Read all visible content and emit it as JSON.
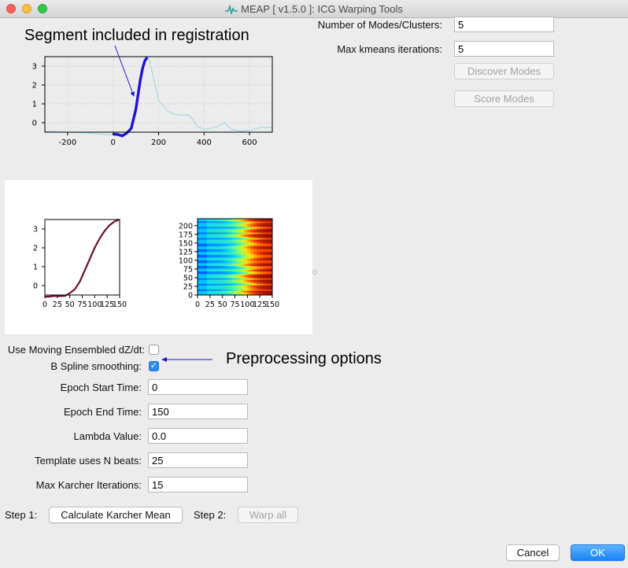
{
  "window": {
    "title": "MEAP [ v1.5.0 ]: ICG Warping Tools"
  },
  "annotations": {
    "segment": "Segment included in registration",
    "preprocessing": "Preprocessing options"
  },
  "chart_data": [
    {
      "type": "line",
      "title": "",
      "xlim": [
        -300,
        700
      ],
      "ylim": [
        -0.5,
        3.5
      ],
      "x_ticks": [
        "-200",
        "0",
        "200",
        "400",
        "600"
      ],
      "y_ticks": [
        "3",
        "2",
        "1",
        "0"
      ],
      "grid": true,
      "series": [
        {
          "style": "thin light blue",
          "x": [
            -300,
            -200,
            -100,
            -50,
            0,
            20,
            50,
            80,
            100,
            120,
            140,
            150,
            160,
            175,
            200,
            240,
            270,
            300,
            330,
            350,
            370,
            400,
            430,
            460,
            490,
            520,
            560,
            600,
            650,
            700
          ],
          "y": [
            -0.45,
            -0.5,
            -0.55,
            -0.6,
            -0.65,
            -0.6,
            -0.62,
            -0.3,
            0.8,
            2.2,
            3.3,
            3.5,
            3.3,
            2.5,
            1.2,
            0.6,
            0.45,
            0.4,
            0.4,
            0.2,
            -0.2,
            -0.35,
            -0.3,
            -0.2,
            0.0,
            -0.35,
            -0.45,
            -0.4,
            -0.25,
            -0.25
          ]
        },
        {
          "style": "thick dark blue (segment)",
          "x": [
            0,
            20,
            40,
            60,
            80,
            100,
            110,
            120,
            130,
            140,
            150
          ],
          "y": [
            -0.6,
            -0.62,
            -0.7,
            -0.55,
            -0.3,
            0.7,
            1.5,
            2.3,
            2.9,
            3.3,
            3.45
          ]
        }
      ]
    },
    {
      "type": "line",
      "title": "",
      "xlim": [
        0,
        150
      ],
      "ylim": [
        -0.5,
        3.5
      ],
      "x_ticks": [
        "0",
        "25",
        "50",
        "75",
        "100",
        "125",
        "150"
      ],
      "y_ticks": [
        "3",
        "2",
        "1",
        "0"
      ],
      "series": [
        {
          "style": "dark red karcher mean",
          "x": [
            0,
            10,
            20,
            30,
            40,
            50,
            60,
            70,
            80,
            90,
            100,
            110,
            120,
            130,
            140,
            150
          ],
          "y": [
            -0.6,
            -0.58,
            -0.55,
            -0.56,
            -0.55,
            -0.4,
            -0.2,
            0.2,
            0.8,
            1.4,
            2.0,
            2.5,
            2.9,
            3.2,
            3.4,
            3.5
          ]
        }
      ]
    },
    {
      "type": "heatmap",
      "title": "",
      "xlim": [
        0,
        150
      ],
      "ylim": [
        0,
        220
      ],
      "x_ticks": [
        "0",
        "25",
        "50",
        "75",
        "100",
        "125",
        "150"
      ],
      "y_ticks": [
        "200",
        "175",
        "150",
        "125",
        "100",
        "75",
        "50",
        "25",
        "0"
      ],
      "colormap": "jet",
      "description_colors": [
        "#00007f",
        "#0050ff",
        "#00d4ff",
        "#7dff7a",
        "#ffe600",
        "#ff4800",
        "#7f0000"
      ]
    }
  ],
  "right_panel": {
    "num_modes_label": "Number of Modes/Clusters:",
    "num_modes_value": "5",
    "max_kmeans_label": "Max kmeans iterations:",
    "max_kmeans_value": "5",
    "discover_label": "Discover Modes",
    "score_label": "Score Modes"
  },
  "options": {
    "moving_ensembled_label": "Use Moving Ensembled dZ/dt:",
    "moving_ensembled_checked": false,
    "bspline_label": "B Spline smoothing:",
    "bspline_checked": true
  },
  "form": {
    "epoch_start_label": "Epoch Start Time:",
    "epoch_start_value": "0",
    "epoch_end_label": "Epoch End Time:",
    "epoch_end_value": "150",
    "lambda_label": "Lambda Value:",
    "lambda_value": "0.0",
    "template_label": "Template uses N beats:",
    "template_value": "25",
    "karcher_label": "Max Karcher Iterations:",
    "karcher_value": "15"
  },
  "steps": {
    "step1_label": "Step 1:",
    "step1_button": "Calculate Karcher Mean",
    "step2_label": "Step 2:",
    "step2_button": "Warp all"
  },
  "footer": {
    "cancel": "Cancel",
    "ok": "OK"
  },
  "colors": {
    "accent": "#1a83f7",
    "segment_line": "#1c12d8",
    "context_line": "#a9d9e6",
    "mean_line": "#6b0f2a"
  }
}
